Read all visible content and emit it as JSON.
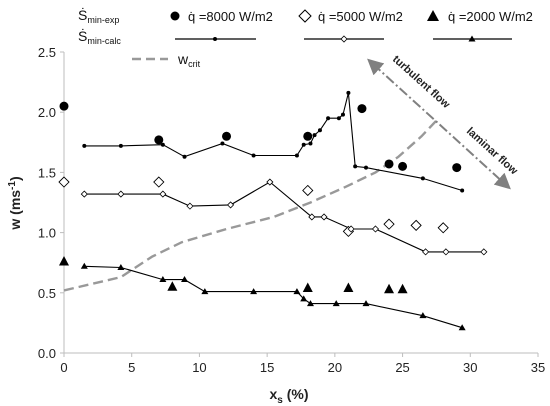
{
  "chart_data": {
    "type": "scatter",
    "xlabel": "x",
    "xlabel_sub": "s",
    "xlabel_unit": " (%)",
    "ylabel": "w (ms",
    "ylabel_sup": "-1",
    "ylabel_end": ")",
    "xlim": [
      0,
      35
    ],
    "ylim": [
      0,
      2.5
    ],
    "x_ticks": [
      0,
      5,
      10,
      15,
      20,
      25,
      30,
      35
    ],
    "y_ticks": [
      "0.0",
      "0.5",
      "1.0",
      "1.5",
      "2.0",
      "2.5"
    ],
    "grid": false,
    "legend": {
      "exp_label": "Ṡ",
      "exp_sub": "min-exp",
      "calc_label": "Ṡ",
      "calc_sub": "min-calc",
      "crit_label": "w",
      "crit_sub": "crit",
      "q_8000": "q̇ =8000 W/m2",
      "q_5000": "q̇ =5000 W/m2",
      "q_2000": "q̇ =2000 W/m2"
    },
    "annotations": {
      "turbulent": "turbulent flow",
      "laminar": "laminar flow"
    },
    "series": [
      {
        "key": "exp_8000",
        "marker": "circle",
        "points": [
          [
            0,
            2.05
          ],
          [
            7,
            1.77
          ],
          [
            12,
            1.8
          ],
          [
            18,
            1.8
          ],
          [
            22,
            2.03
          ],
          [
            24,
            1.57
          ],
          [
            25,
            1.55
          ],
          [
            29,
            1.54
          ]
        ]
      },
      {
        "key": "exp_5000",
        "marker": "diamond",
        "points": [
          [
            0,
            1.42
          ],
          [
            7,
            1.42
          ],
          [
            18,
            1.35
          ],
          [
            21,
            1.01
          ],
          [
            24,
            1.07
          ],
          [
            26,
            1.06
          ],
          [
            28,
            1.04
          ]
        ]
      },
      {
        "key": "exp_2000",
        "marker": "triangle",
        "points": [
          [
            0,
            0.76
          ],
          [
            8,
            0.55
          ],
          [
            18,
            0.54
          ],
          [
            21,
            0.54
          ],
          [
            24,
            0.53
          ],
          [
            25,
            0.53
          ]
        ]
      },
      {
        "key": "calc_8000",
        "marker": "dot",
        "points": [
          [
            1.5,
            1.72
          ],
          [
            4.2,
            1.72
          ],
          [
            7.3,
            1.73
          ],
          [
            8.9,
            1.63
          ],
          [
            11.7,
            1.74
          ],
          [
            14,
            1.64
          ],
          [
            17.2,
            1.64
          ],
          [
            17.7,
            1.73
          ],
          [
            18.2,
            1.74
          ],
          [
            18.5,
            1.81
          ],
          [
            18.9,
            1.85
          ],
          [
            19.5,
            1.95
          ],
          [
            20.3,
            1.95
          ],
          [
            20.6,
            1.98
          ],
          [
            21,
            2.16
          ],
          [
            21.5,
            1.55
          ],
          [
            22.3,
            1.54
          ],
          [
            26.5,
            1.45
          ],
          [
            29.4,
            1.35
          ]
        ]
      },
      {
        "key": "calc_5000",
        "marker": "smalldiamond",
        "points": [
          [
            1.5,
            1.32
          ],
          [
            4.2,
            1.32
          ],
          [
            7.3,
            1.32
          ],
          [
            9.3,
            1.22
          ],
          [
            12.3,
            1.23
          ],
          [
            15.2,
            1.42
          ],
          [
            18.3,
            1.13
          ],
          [
            19.2,
            1.13
          ],
          [
            21.2,
            1.03
          ],
          [
            23,
            1.03
          ],
          [
            26.7,
            0.84
          ],
          [
            28.2,
            0.84
          ],
          [
            31,
            0.84
          ]
        ]
      },
      {
        "key": "calc_2000",
        "marker": "smalltriangle",
        "points": [
          [
            1.5,
            0.72
          ],
          [
            4.2,
            0.71
          ],
          [
            7.3,
            0.61
          ],
          [
            8.9,
            0.61
          ],
          [
            10.4,
            0.51
          ],
          [
            14,
            0.51
          ],
          [
            17.2,
            0.51
          ],
          [
            17.7,
            0.45
          ],
          [
            18.2,
            0.41
          ],
          [
            20.1,
            0.41
          ],
          [
            22.3,
            0.41
          ],
          [
            26.5,
            0.31
          ],
          [
            29.4,
            0.21
          ]
        ]
      }
    ],
    "wcrit": [
      [
        0,
        0.52
      ],
      [
        4.2,
        0.63
      ],
      [
        6.5,
        0.8
      ],
      [
        8.7,
        0.92
      ],
      [
        12,
        1.03
      ],
      [
        15.5,
        1.13
      ],
      [
        18.2,
        1.25
      ],
      [
        20.8,
        1.38
      ],
      [
        23,
        1.5
      ],
      [
        24.7,
        1.63
      ],
      [
        26.4,
        1.8
      ],
      [
        27.5,
        1.93
      ]
    ],
    "colors": {
      "series": "#000000",
      "wcrit": "#999999",
      "annotation_arrow": "#808080",
      "axis": "#bdbdbd"
    }
  }
}
